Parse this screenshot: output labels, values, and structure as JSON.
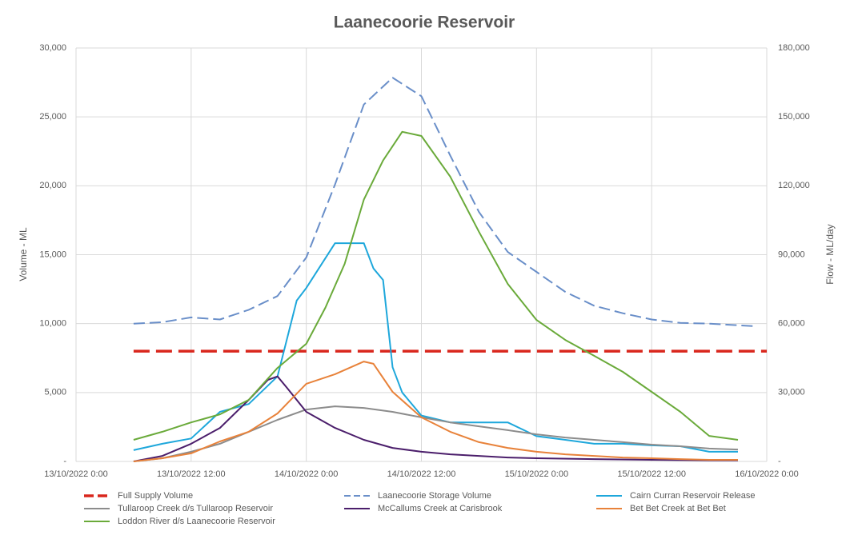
{
  "chart_data": {
    "type": "line",
    "title": "Laanecoorie Reservoir",
    "y_label": "Volume - ML",
    "y2_label": "Flow - ML/day",
    "grid": true,
    "xlim": [
      "2022-10-13T00:00",
      "2022-10-16T00:00"
    ],
    "xticks": [
      {
        "value": "2022-10-13T00:00",
        "label": "13/10/2022 0:00"
      },
      {
        "value": "2022-10-13T12:00",
        "label": "13/10/2022 12:00"
      },
      {
        "value": "2022-10-14T00:00",
        "label": "14/10/2022 0:00"
      },
      {
        "value": "2022-10-14T12:00",
        "label": "14/10/2022 12:00"
      },
      {
        "value": "2022-10-15T00:00",
        "label": "15/10/2022 0:00"
      },
      {
        "value": "2022-10-15T12:00",
        "label": "15/10/2022 12:00"
      },
      {
        "value": "2022-10-16T00:00",
        "label": "16/10/2022 0:00"
      }
    ],
    "ylim": [
      0,
      30000
    ],
    "yticks": [
      {
        "value": 0,
        "label": "-"
      },
      {
        "value": 5000,
        "label": "5,000"
      },
      {
        "value": 10000,
        "label": "10,000"
      },
      {
        "value": 15000,
        "label": "15,000"
      },
      {
        "value": 20000,
        "label": "20,000"
      },
      {
        "value": 25000,
        "label": "25,000"
      },
      {
        "value": 30000,
        "label": "30,000"
      }
    ],
    "y2lim": [
      0,
      180000
    ],
    "y2ticks": [
      {
        "value": 0,
        "label": "-"
      },
      {
        "value": 30000,
        "label": "30,000"
      },
      {
        "value": 60000,
        "label": "60,000"
      },
      {
        "value": 90000,
        "label": "90,000"
      },
      {
        "value": 120000,
        "label": "120,000"
      },
      {
        "value": 150000,
        "label": "150,000"
      },
      {
        "value": 180000,
        "label": "180,000"
      }
    ],
    "series": [
      {
        "name": "Full Supply Volume",
        "color": "#d9261c",
        "line_style": "dashed",
        "width": 3.5,
        "x": [
          "2022-10-13T06:00",
          "2022-10-16T00:00"
        ],
        "values": [
          8000,
          8000
        ]
      },
      {
        "name": "Laanecoorie Storage Volume",
        "color": "#6a8fc9",
        "line_style": "dashed",
        "width": 2,
        "x": [
          "2022-10-13T06:00",
          "2022-10-13T09:00",
          "2022-10-13T12:00",
          "2022-10-13T15:00",
          "2022-10-13T18:00",
          "2022-10-13T21:00",
          "2022-10-14T00:00",
          "2022-10-14T03:00",
          "2022-10-14T06:00",
          "2022-10-14T09:00",
          "2022-10-14T12:00",
          "2022-10-14T15:00",
          "2022-10-14T18:00",
          "2022-10-14T21:00",
          "2022-10-15T00:00",
          "2022-10-15T03:00",
          "2022-10-15T06:00",
          "2022-10-15T09:00",
          "2022-10-15T12:00",
          "2022-10-15T15:00",
          "2022-10-15T18:00",
          "2022-10-15T23:00"
        ],
        "values": [
          10000,
          10100,
          10450,
          10300,
          11000,
          12000,
          14800,
          20100,
          25900,
          27850,
          26500,
          22200,
          18100,
          15200,
          13750,
          12300,
          11300,
          10750,
          10300,
          10050,
          10000,
          9800
        ]
      },
      {
        "name": "Cairn Curran Reservoir Release",
        "color": "#1ea7db",
        "axis": "y2",
        "width": 2,
        "x": [
          "2022-10-13T06:00",
          "2022-10-13T09:00",
          "2022-10-13T12:00",
          "2022-10-13T15:00",
          "2022-10-13T18:00",
          "2022-10-13T21:00",
          "2022-10-13T23:00",
          "2022-10-14T00:00",
          "2022-10-14T03:00",
          "2022-10-14T06:00",
          "2022-10-14T07:00",
          "2022-10-14T08:00",
          "2022-10-14T09:00",
          "2022-10-14T10:00",
          "2022-10-14T12:00",
          "2022-10-14T15:00",
          "2022-10-14T18:00",
          "2022-10-14T21:00",
          "2022-10-15T00:00",
          "2022-10-15T03:00",
          "2022-10-15T06:00",
          "2022-10-15T09:00",
          "2022-10-15T12:00",
          "2022-10-15T15:00",
          "2022-10-15T18:00",
          "2022-10-15T21:00"
        ],
        "values": [
          4900,
          7700,
          10000,
          21600,
          25000,
          37000,
          70000,
          75500,
          95000,
          95000,
          84000,
          79000,
          41000,
          30000,
          20000,
          17000,
          17000,
          17000,
          11000,
          9400,
          7700,
          7700,
          7000,
          6600,
          4200,
          4200
        ]
      },
      {
        "name": "Tullaroop Creek d/s Tullaroop Reservoir",
        "color": "#8c8c8c",
        "axis": "y2",
        "width": 2,
        "x": [
          "2022-10-13T06:00",
          "2022-10-13T09:00",
          "2022-10-13T12:00",
          "2022-10-13T15:00",
          "2022-10-13T18:00",
          "2022-10-13T21:00",
          "2022-10-14T00:00",
          "2022-10-14T03:00",
          "2022-10-14T06:00",
          "2022-10-14T09:00",
          "2022-10-14T12:00",
          "2022-10-14T15:00",
          "2022-10-14T18:00",
          "2022-10-14T21:00",
          "2022-10-15T00:00",
          "2022-10-15T03:00",
          "2022-10-15T06:00",
          "2022-10-15T09:00",
          "2022-10-15T12:00",
          "2022-10-15T15:00",
          "2022-10-15T18:00",
          "2022-10-15T21:00"
        ],
        "values": [
          0,
          1400,
          4200,
          7700,
          12900,
          18100,
          22600,
          24000,
          23300,
          21600,
          19200,
          17000,
          15300,
          13600,
          11800,
          10400,
          9400,
          8400,
          7300,
          6600,
          5600,
          5200
        ]
      },
      {
        "name": "McCallums Creek at Carisbrook",
        "color": "#4b1e6b",
        "axis": "y2",
        "width": 2,
        "x": [
          "2022-10-13T06:00",
          "2022-10-13T09:00",
          "2022-10-13T12:00",
          "2022-10-13T15:00",
          "2022-10-13T18:00",
          "2022-10-13T20:00",
          "2022-10-13T21:00",
          "2022-10-13T22:00",
          "2022-10-14T00:00",
          "2022-10-14T03:00",
          "2022-10-14T06:00",
          "2022-10-14T09:00",
          "2022-10-14T12:00",
          "2022-10-14T15:00",
          "2022-10-14T18:00",
          "2022-10-14T21:00",
          "2022-10-15T00:00",
          "2022-10-15T06:00",
          "2022-10-15T12:00",
          "2022-10-15T18:00",
          "2022-10-15T21:00"
        ],
        "values": [
          0,
          2400,
          7700,
          14600,
          26800,
          35500,
          37000,
          32000,
          21600,
          14600,
          9400,
          5900,
          4200,
          3100,
          2400,
          1700,
          1400,
          1000,
          700,
          500,
          500
        ]
      },
      {
        "name": "Bet Bet Creek at Bet Bet",
        "color": "#e8823a",
        "axis": "y2",
        "width": 2,
        "x": [
          "2022-10-13T06:00",
          "2022-10-13T09:00",
          "2022-10-13T12:00",
          "2022-10-13T15:00",
          "2022-10-13T18:00",
          "2022-10-13T21:00",
          "2022-10-14T00:00",
          "2022-10-14T03:00",
          "2022-10-14T06:00",
          "2022-10-14T07:00",
          "2022-10-14T09:00",
          "2022-10-14T12:00",
          "2022-10-14T15:00",
          "2022-10-14T18:00",
          "2022-10-14T21:00",
          "2022-10-15T00:00",
          "2022-10-15T03:00",
          "2022-10-15T06:00",
          "2022-10-15T09:00",
          "2022-10-15T12:00",
          "2022-10-15T15:00",
          "2022-10-15T18:00",
          "2022-10-15T21:00"
        ],
        "values": [
          0,
          1400,
          3500,
          8700,
          12900,
          20900,
          33800,
          38000,
          43500,
          42500,
          30300,
          19200,
          12900,
          8400,
          5900,
          4200,
          3100,
          2400,
          1700,
          1400,
          1000,
          700,
          700
        ]
      },
      {
        "name": "Loddon River d/s Laanecoorie Reservoir",
        "color": "#6aaa3a",
        "axis": "y2",
        "width": 2,
        "x": [
          "2022-10-13T06:00",
          "2022-10-13T09:00",
          "2022-10-13T12:00",
          "2022-10-13T15:00",
          "2022-10-13T18:00",
          "2022-10-13T21:00",
          "2022-10-14T00:00",
          "2022-10-14T02:00",
          "2022-10-14T04:00",
          "2022-10-14T06:00",
          "2022-10-14T08:00",
          "2022-10-14T10:00",
          "2022-10-14T12:00",
          "2022-10-14T15:00",
          "2022-10-14T18:00",
          "2022-10-14T21:00",
          "2022-10-15T00:00",
          "2022-10-15T03:00",
          "2022-10-15T06:00",
          "2022-10-15T09:00",
          "2022-10-15T12:00",
          "2022-10-15T15:00",
          "2022-10-15T18:00",
          "2022-10-15T21:00"
        ],
        "values": [
          9400,
          12900,
          17000,
          20500,
          26800,
          40700,
          51200,
          67000,
          86000,
          114000,
          131000,
          143500,
          141700,
          124000,
          100000,
          77300,
          61600,
          52900,
          46000,
          39000,
          30300,
          21600,
          11100,
          9400
        ]
      }
    ]
  }
}
